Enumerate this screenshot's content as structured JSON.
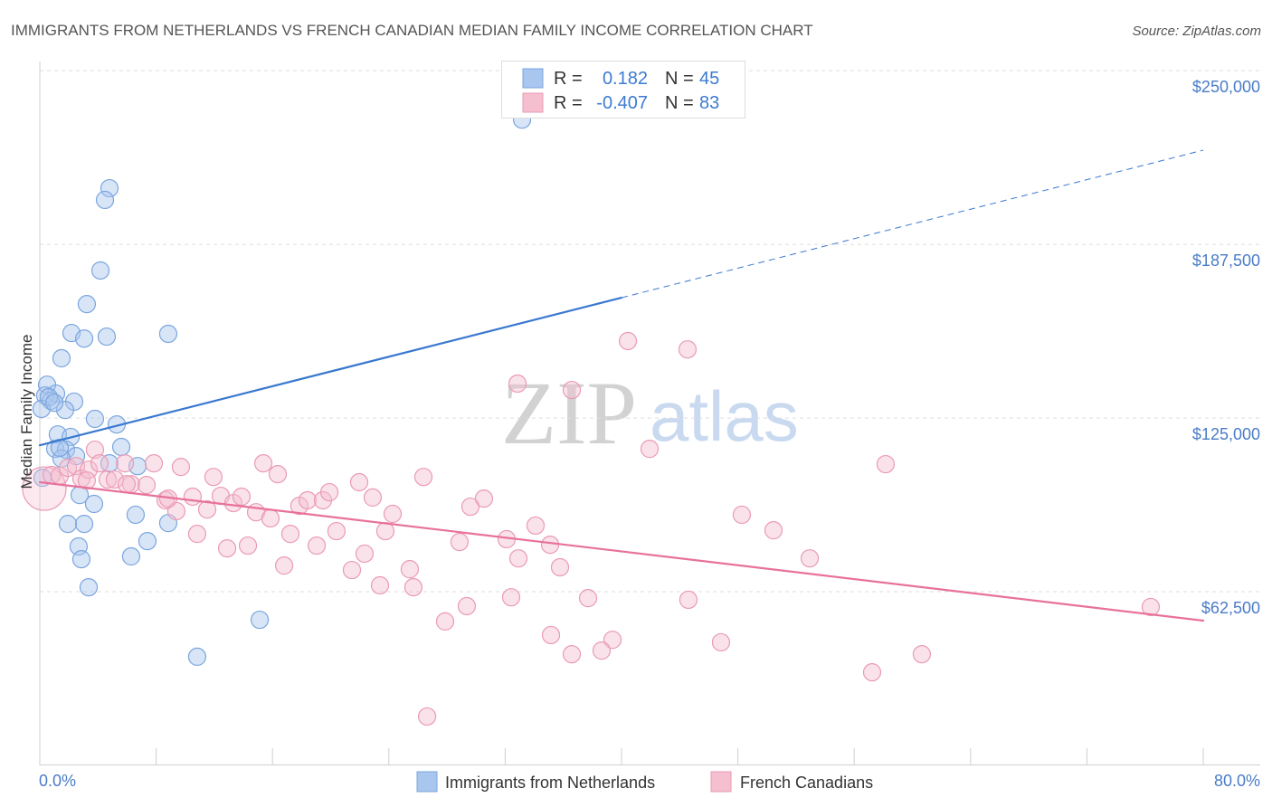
{
  "source": "Source: ZipAtlas.com",
  "watermark": {
    "zip": "ZIP",
    "atlas": "atlas"
  },
  "chart_data": {
    "type": "scatter",
    "title": "IMMIGRANTS FROM NETHERLANDS VS FRENCH CANADIAN MEDIAN FAMILY INCOME CORRELATION CHART",
    "xlabel": "",
    "ylabel": "Median Family Income",
    "xlim": [
      0,
      80
    ],
    "ylim": [
      0,
      253300
    ],
    "x_ticks": [
      0,
      8,
      16,
      24,
      32,
      40,
      48,
      56,
      64,
      72,
      80
    ],
    "x_tick_labels": [
      "0.0%",
      "80.0%"
    ],
    "y_ticks": [
      {
        "value": 62500,
        "label": "$62,500"
      },
      {
        "value": 125000,
        "label": "$125,000"
      },
      {
        "value": 187500,
        "label": "$187,500"
      },
      {
        "value": 250000,
        "label": "$250,000"
      }
    ],
    "grid": true,
    "legend": {
      "position": "top-center",
      "r_label": "R =",
      "n_label": "N ="
    },
    "series": [
      {
        "name": "Immigrants from Netherlands",
        "r": "0.182",
        "n": "45",
        "color_fill": "#a9c6ee",
        "color_stroke": "#7aa5de",
        "color_line": "#3a78cf",
        "points": [
          [
            33.16,
            232400
          ],
          [
            4.79,
            207700
          ],
          [
            4.48,
            203500
          ],
          [
            4.17,
            178100
          ],
          [
            3.23,
            166000
          ],
          [
            2.18,
            155600
          ],
          [
            3.05,
            153600
          ],
          [
            4.6,
            154300
          ],
          [
            8.83,
            155300
          ],
          [
            1.49,
            146500
          ],
          [
            0.5,
            137000
          ],
          [
            1.12,
            133800
          ],
          [
            0.37,
            133100
          ],
          [
            2.36,
            130900
          ],
          [
            0.75,
            131200
          ],
          [
            1.74,
            127900
          ],
          [
            0.12,
            128300
          ],
          [
            3.79,
            124700
          ],
          [
            5.29,
            122700
          ],
          [
            1.24,
            119100
          ],
          [
            2.12,
            118200
          ],
          [
            1.06,
            113900
          ],
          [
            1.8,
            113600
          ],
          [
            5.6,
            114600
          ],
          [
            2.49,
            111300
          ],
          [
            1.49,
            110400
          ],
          [
            4.79,
            108700
          ],
          [
            6.72,
            107700
          ],
          [
            0.19,
            103500
          ],
          [
            2.74,
            97300
          ],
          [
            3.73,
            94100
          ],
          [
            6.59,
            90200
          ],
          [
            1.93,
            86900
          ],
          [
            3.05,
            86900
          ],
          [
            8.83,
            87200
          ],
          [
            2.67,
            78800
          ],
          [
            7.4,
            80700
          ],
          [
            2.86,
            74200
          ],
          [
            6.28,
            75200
          ],
          [
            3.36,
            64100
          ],
          [
            15.12,
            52400
          ],
          [
            10.82,
            39100
          ],
          [
            0.62,
            132500
          ],
          [
            1.37,
            114300
          ],
          [
            1.0,
            130500
          ]
        ],
        "trend": {
          "solid": [
            [
              0,
              115200
            ],
            [
              40,
              168300
            ]
          ],
          "dashed": [
            [
              40,
              168300
            ],
            [
              80,
              221400
            ]
          ]
        }
      },
      {
        "name": "French Canadians",
        "r": "-0.407",
        "n": "83",
        "color_fill": "#f5bfd0",
        "color_stroke": "#ea9ab5",
        "color_line": "#e8719b",
        "points": [
          [
            32.85,
            137400
          ],
          [
            36.58,
            135100
          ],
          [
            40.44,
            152700
          ],
          [
            44.54,
            149700
          ],
          [
            41.93,
            113900
          ],
          [
            58.16,
            108400
          ],
          [
            26.38,
            103800
          ],
          [
            30.54,
            96000
          ],
          [
            29.61,
            93100
          ],
          [
            24.26,
            90500
          ],
          [
            48.27,
            90200
          ],
          [
            34.09,
            86300
          ],
          [
            50.45,
            84600
          ],
          [
            23.76,
            84300
          ],
          [
            28.86,
            80400
          ],
          [
            32.1,
            81400
          ],
          [
            35.09,
            79400
          ],
          [
            52.94,
            74500
          ],
          [
            32.91,
            74500
          ],
          [
            35.77,
            71300
          ],
          [
            25.44,
            70600
          ],
          [
            23.39,
            64800
          ],
          [
            25.69,
            64100
          ],
          [
            32.41,
            60500
          ],
          [
            37.7,
            60200
          ],
          [
            44.6,
            59600
          ],
          [
            29.36,
            57300
          ],
          [
            27.87,
            51800
          ],
          [
            35.15,
            46900
          ],
          [
            39.38,
            45200
          ],
          [
            46.84,
            44300
          ],
          [
            36.58,
            40000
          ],
          [
            38.63,
            41300
          ],
          [
            60.65,
            40000
          ],
          [
            57.23,
            33500
          ],
          [
            26.63,
            17600
          ],
          [
            76.39,
            57000
          ],
          [
            0.31,
            99600
          ],
          [
            0.81,
            104500
          ],
          [
            1.37,
            104200
          ],
          [
            1.93,
            107100
          ],
          [
            2.49,
            107700
          ],
          [
            2.86,
            103200
          ],
          [
            3.79,
            113600
          ],
          [
            3.36,
            106400
          ],
          [
            4.11,
            108700
          ],
          [
            4.67,
            102900
          ],
          [
            5.16,
            102900
          ],
          [
            5.85,
            108700
          ],
          [
            6.28,
            101200
          ],
          [
            7.34,
            100900
          ],
          [
            7.84,
            108700
          ],
          [
            8.65,
            95400
          ],
          [
            9.39,
            91500
          ],
          [
            9.7,
            107400
          ],
          [
            10.51,
            96700
          ],
          [
            10.82,
            83300
          ],
          [
            11.51,
            92100
          ],
          [
            11.94,
            103800
          ],
          [
            12.44,
            97000
          ],
          [
            12.88,
            78100
          ],
          [
            13.31,
            94400
          ],
          [
            13.87,
            96700
          ],
          [
            14.31,
            79100
          ],
          [
            14.87,
            91100
          ],
          [
            15.37,
            108700
          ],
          [
            15.86,
            88900
          ],
          [
            16.36,
            104800
          ],
          [
            16.8,
            71900
          ],
          [
            17.23,
            83300
          ],
          [
            17.85,
            93400
          ],
          [
            18.41,
            95400
          ],
          [
            19.04,
            79100
          ],
          [
            19.47,
            95400
          ],
          [
            19.91,
            98300
          ],
          [
            20.4,
            84300
          ],
          [
            21.46,
            70300
          ],
          [
            21.96,
            101900
          ],
          [
            22.33,
            76200
          ],
          [
            22.89,
            96400
          ],
          [
            8.83,
            96000
          ],
          [
            5.97,
            101200
          ],
          [
            3.23,
            102500
          ]
        ],
        "trend": {
          "solid": [
            [
              0,
              101900
            ],
            [
              80,
              52100
            ]
          ]
        }
      }
    ]
  }
}
